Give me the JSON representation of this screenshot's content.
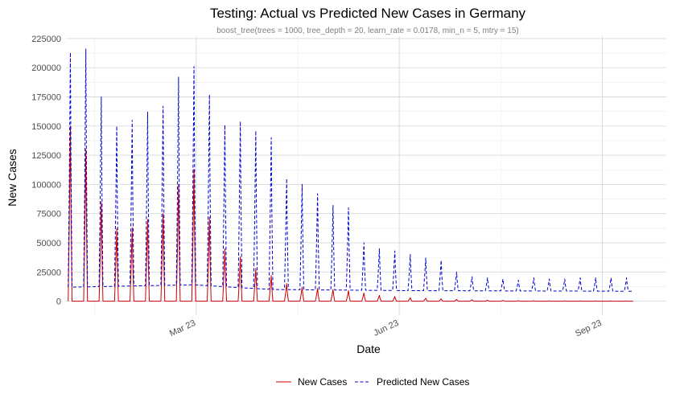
{
  "chart_data": {
    "type": "line",
    "title": "Testing: Actual vs Predicted New Cases in Germany",
    "subtitle": "boost_tree(trees = 1000, tree_depth = 20, learn_rate = 0.0178, min_n = 5, mtry = 15)",
    "xlabel": "Date",
    "ylabel": "New Cases",
    "xlim": [
      "2023-01-01",
      "2023-09-30"
    ],
    "ylim": [
      -12000,
      227000
    ],
    "x_ticks": [
      {
        "date": "2023-03-01",
        "label": "Mar 23"
      },
      {
        "date": "2023-06-01",
        "label": "Jun 23"
      },
      {
        "date": "2023-09-01",
        "label": "Sep 23"
      }
    ],
    "y_ticks": [
      0,
      25000,
      50000,
      75000,
      100000,
      125000,
      150000,
      175000,
      200000,
      225000
    ],
    "y_tick_labels": [
      "0",
      "25000",
      "50000",
      "75000",
      "100000",
      "125000",
      "150000",
      "175000",
      "200000",
      "225000"
    ],
    "grid": true,
    "legend_position": "bottom",
    "series": [
      {
        "name": "New Cases",
        "color": "#cc0000",
        "line_style": "solid",
        "weekly_peaks": [
          {
            "date": "2023-01-03",
            "value": 150000
          },
          {
            "date": "2023-01-10",
            "value": 130000
          },
          {
            "date": "2023-01-17",
            "value": 85000
          },
          {
            "date": "2023-01-24",
            "value": 62000
          },
          {
            "date": "2023-01-31",
            "value": 63000
          },
          {
            "date": "2023-02-07",
            "value": 70000
          },
          {
            "date": "2023-02-14",
            "value": 75000
          },
          {
            "date": "2023-02-21",
            "value": 100000
          },
          {
            "date": "2023-02-28",
            "value": 113000
          },
          {
            "date": "2023-03-07",
            "value": 72000
          },
          {
            "date": "2023-03-14",
            "value": 45000
          },
          {
            "date": "2023-03-21",
            "value": 38000
          },
          {
            "date": "2023-03-28",
            "value": 28000
          },
          {
            "date": "2023-04-04",
            "value": 22000
          },
          {
            "date": "2023-04-11",
            "value": 15000
          },
          {
            "date": "2023-04-18",
            "value": 12000
          },
          {
            "date": "2023-04-25",
            "value": 11000
          },
          {
            "date": "2023-05-02",
            "value": 10000
          },
          {
            "date": "2023-05-09",
            "value": 9000
          },
          {
            "date": "2023-05-16",
            "value": 7000
          },
          {
            "date": "2023-05-23",
            "value": 5000
          },
          {
            "date": "2023-05-30",
            "value": 4000
          },
          {
            "date": "2023-06-06",
            "value": 3000
          },
          {
            "date": "2023-06-13",
            "value": 2500
          },
          {
            "date": "2023-06-20",
            "value": 2000
          },
          {
            "date": "2023-06-27",
            "value": 1500
          },
          {
            "date": "2023-07-04",
            "value": 1200
          },
          {
            "date": "2023-07-11",
            "value": 800
          },
          {
            "date": "2023-07-18",
            "value": 600
          },
          {
            "date": "2023-07-25",
            "value": 400
          },
          {
            "date": "2023-08-01",
            "value": 300
          },
          {
            "date": "2023-08-08",
            "value": 200
          },
          {
            "date": "2023-08-15",
            "value": 200
          },
          {
            "date": "2023-08-22",
            "value": 150
          },
          {
            "date": "2023-08-29",
            "value": 100
          },
          {
            "date": "2023-09-05",
            "value": 100
          },
          {
            "date": "2023-09-12",
            "value": 100
          }
        ]
      },
      {
        "name": "Predicted New Cases",
        "color": "#0000cc",
        "line_style": "dashed",
        "weekly_peaks": [
          {
            "date": "2023-01-03",
            "value": 213000
          },
          {
            "date": "2023-01-10",
            "value": 216000
          },
          {
            "date": "2023-01-17",
            "value": 175000
          },
          {
            "date": "2023-01-24",
            "value": 150000
          },
          {
            "date": "2023-01-31",
            "value": 155000
          },
          {
            "date": "2023-02-07",
            "value": 162000
          },
          {
            "date": "2023-02-14",
            "value": 167000
          },
          {
            "date": "2023-02-21",
            "value": 192000
          },
          {
            "date": "2023-02-28",
            "value": 201000
          },
          {
            "date": "2023-03-07",
            "value": 177000
          },
          {
            "date": "2023-03-14",
            "value": 151000
          },
          {
            "date": "2023-03-21",
            "value": 154000
          },
          {
            "date": "2023-03-28",
            "value": 146000
          },
          {
            "date": "2023-04-04",
            "value": 140000
          },
          {
            "date": "2023-04-11",
            "value": 105000
          },
          {
            "date": "2023-04-18",
            "value": 100000
          },
          {
            "date": "2023-04-25",
            "value": 92000
          },
          {
            "date": "2023-05-02",
            "value": 82000
          },
          {
            "date": "2023-05-09",
            "value": 80000
          },
          {
            "date": "2023-05-16",
            "value": 50000
          },
          {
            "date": "2023-05-23",
            "value": 45000
          },
          {
            "date": "2023-05-30",
            "value": 43000
          },
          {
            "date": "2023-06-06",
            "value": 40000
          },
          {
            "date": "2023-06-13",
            "value": 37000
          },
          {
            "date": "2023-06-20",
            "value": 35000
          },
          {
            "date": "2023-06-27",
            "value": 25000
          },
          {
            "date": "2023-07-04",
            "value": 21000
          },
          {
            "date": "2023-07-11",
            "value": 20000
          },
          {
            "date": "2023-07-18",
            "value": 19000
          },
          {
            "date": "2023-07-25",
            "value": 18000
          },
          {
            "date": "2023-08-01",
            "value": 20000
          },
          {
            "date": "2023-08-08",
            "value": 19000
          },
          {
            "date": "2023-08-15",
            "value": 19000
          },
          {
            "date": "2023-08-22",
            "value": 20000
          },
          {
            "date": "2023-08-29",
            "value": 20000
          },
          {
            "date": "2023-09-05",
            "value": 20000
          },
          {
            "date": "2023-09-12",
            "value": 20000
          }
        ],
        "baseline": [
          {
            "date": "2023-01-03",
            "value": 12000
          },
          {
            "date": "2023-02-28",
            "value": 14000
          },
          {
            "date": "2023-04-04",
            "value": 10000
          },
          {
            "date": "2023-06-06",
            "value": 9000
          },
          {
            "date": "2023-09-15",
            "value": 8500
          }
        ]
      }
    ]
  }
}
